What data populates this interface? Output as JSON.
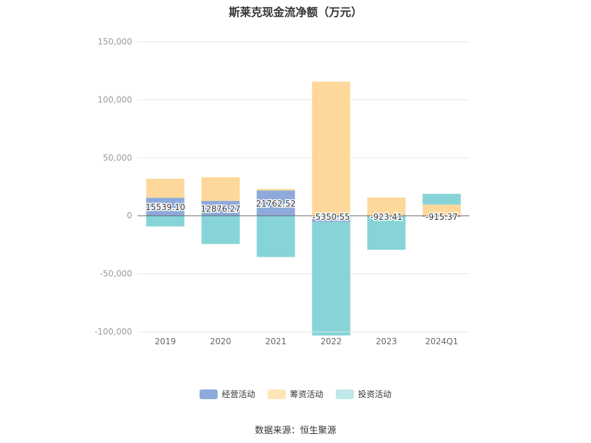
{
  "chart_data": {
    "type": "bar",
    "stacked": true,
    "title": "斯莱克现金流净额（万元）",
    "categories": [
      "2019",
      "2020",
      "2021",
      "2022",
      "2023",
      "2024Q1"
    ],
    "series": [
      {
        "name": "经营活动",
        "color": "#8eaadb",
        "values": [
          15539.1,
          12876.27,
          21762.52,
          -5350.55,
          -923.41,
          -915.37
        ]
      },
      {
        "name": "筹资活动",
        "color": "#fed89a",
        "values": [
          16300,
          20300,
          1300,
          115600,
          15700,
          9600
        ]
      },
      {
        "name": "投资活动",
        "color": "#86d4d8",
        "values": [
          -9200,
          -24300,
          -35600,
          -97900,
          -28400,
          9300
        ]
      }
    ],
    "data_labels": [
      "15539.10",
      "12876.27",
      "21762.52",
      "-5350.55",
      "-923.41",
      "-915.37"
    ],
    "ylim": [
      -100000,
      150000
    ],
    "yticks": [
      "150,000",
      "100,000",
      "50,000",
      "0",
      "-50,000",
      "-100,000"
    ],
    "ytick_values": [
      150000,
      100000,
      50000,
      0,
      -50000,
      -100000
    ],
    "grid": true,
    "legend_position": "bottom"
  },
  "legend": {
    "items": [
      {
        "label": "经营活动",
        "color": "#8eaadb"
      },
      {
        "label": "筹资活动",
        "color": "#fee5b8"
      },
      {
        "label": "投资活动",
        "color": "#bfe8ea"
      }
    ]
  },
  "source": "数据来源：恒生聚源"
}
